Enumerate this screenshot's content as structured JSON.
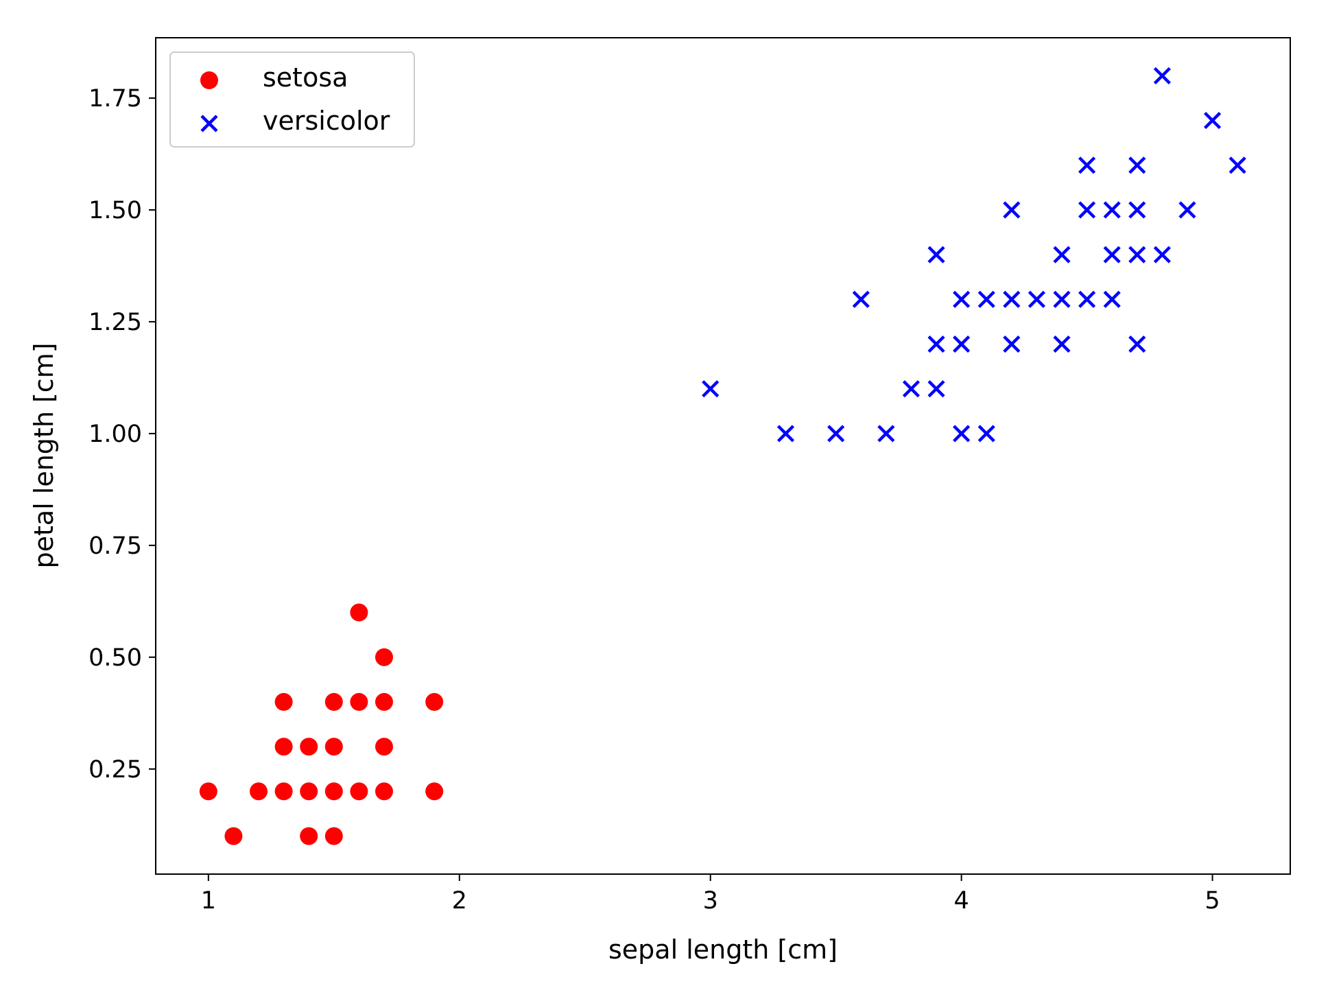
{
  "chart_data": {
    "type": "scatter",
    "title": "",
    "xlabel": "sepal length [cm]",
    "ylabel": "petal length [cm]",
    "xlim": [
      0.79,
      5.31
    ],
    "ylim": [
      0.015,
      1.885
    ],
    "xticks": [
      1,
      2,
      3,
      4,
      5
    ],
    "xtick_labels": [
      "1",
      "2",
      "3",
      "4",
      "5"
    ],
    "yticks": [
      0.25,
      0.5,
      0.75,
      1.0,
      1.25,
      1.5,
      1.75
    ],
    "ytick_labels": [
      "0.25",
      "0.50",
      "0.75",
      "1.00",
      "1.25",
      "1.50",
      "1.75"
    ],
    "grid": false,
    "legend_position": "top-left",
    "series": [
      {
        "name": "setosa",
        "marker": "circle",
        "color": "#ff0000",
        "points": [
          [
            1.0,
            0.2
          ],
          [
            1.1,
            0.1
          ],
          [
            1.2,
            0.2
          ],
          [
            1.3,
            0.2
          ],
          [
            1.3,
            0.3
          ],
          [
            1.3,
            0.4
          ],
          [
            1.4,
            0.1
          ],
          [
            1.4,
            0.2
          ],
          [
            1.4,
            0.3
          ],
          [
            1.5,
            0.1
          ],
          [
            1.5,
            0.2
          ],
          [
            1.5,
            0.3
          ],
          [
            1.5,
            0.4
          ],
          [
            1.6,
            0.2
          ],
          [
            1.6,
            0.4
          ],
          [
            1.6,
            0.6
          ],
          [
            1.7,
            0.2
          ],
          [
            1.7,
            0.3
          ],
          [
            1.7,
            0.4
          ],
          [
            1.7,
            0.5
          ],
          [
            1.9,
            0.2
          ],
          [
            1.9,
            0.4
          ]
        ]
      },
      {
        "name": "versicolor",
        "marker": "x",
        "color": "#0000ff",
        "points": [
          [
            3.0,
            1.1
          ],
          [
            3.3,
            1.0
          ],
          [
            3.5,
            1.0
          ],
          [
            3.6,
            1.3
          ],
          [
            3.7,
            1.0
          ],
          [
            3.8,
            1.1
          ],
          [
            3.9,
            1.1
          ],
          [
            3.9,
            1.2
          ],
          [
            3.9,
            1.4
          ],
          [
            4.0,
            1.0
          ],
          [
            4.0,
            1.2
          ],
          [
            4.0,
            1.3
          ],
          [
            4.1,
            1.0
          ],
          [
            4.1,
            1.3
          ],
          [
            4.2,
            1.2
          ],
          [
            4.2,
            1.3
          ],
          [
            4.2,
            1.5
          ],
          [
            4.3,
            1.3
          ],
          [
            4.4,
            1.2
          ],
          [
            4.4,
            1.3
          ],
          [
            4.4,
            1.4
          ],
          [
            4.5,
            1.3
          ],
          [
            4.5,
            1.5
          ],
          [
            4.5,
            1.6
          ],
          [
            4.6,
            1.3
          ],
          [
            4.6,
            1.4
          ],
          [
            4.6,
            1.5
          ],
          [
            4.7,
            1.2
          ],
          [
            4.7,
            1.4
          ],
          [
            4.7,
            1.5
          ],
          [
            4.7,
            1.6
          ],
          [
            4.8,
            1.4
          ],
          [
            4.8,
            1.8
          ],
          [
            4.9,
            1.5
          ],
          [
            5.0,
            1.7
          ],
          [
            5.1,
            1.6
          ]
        ]
      }
    ]
  }
}
